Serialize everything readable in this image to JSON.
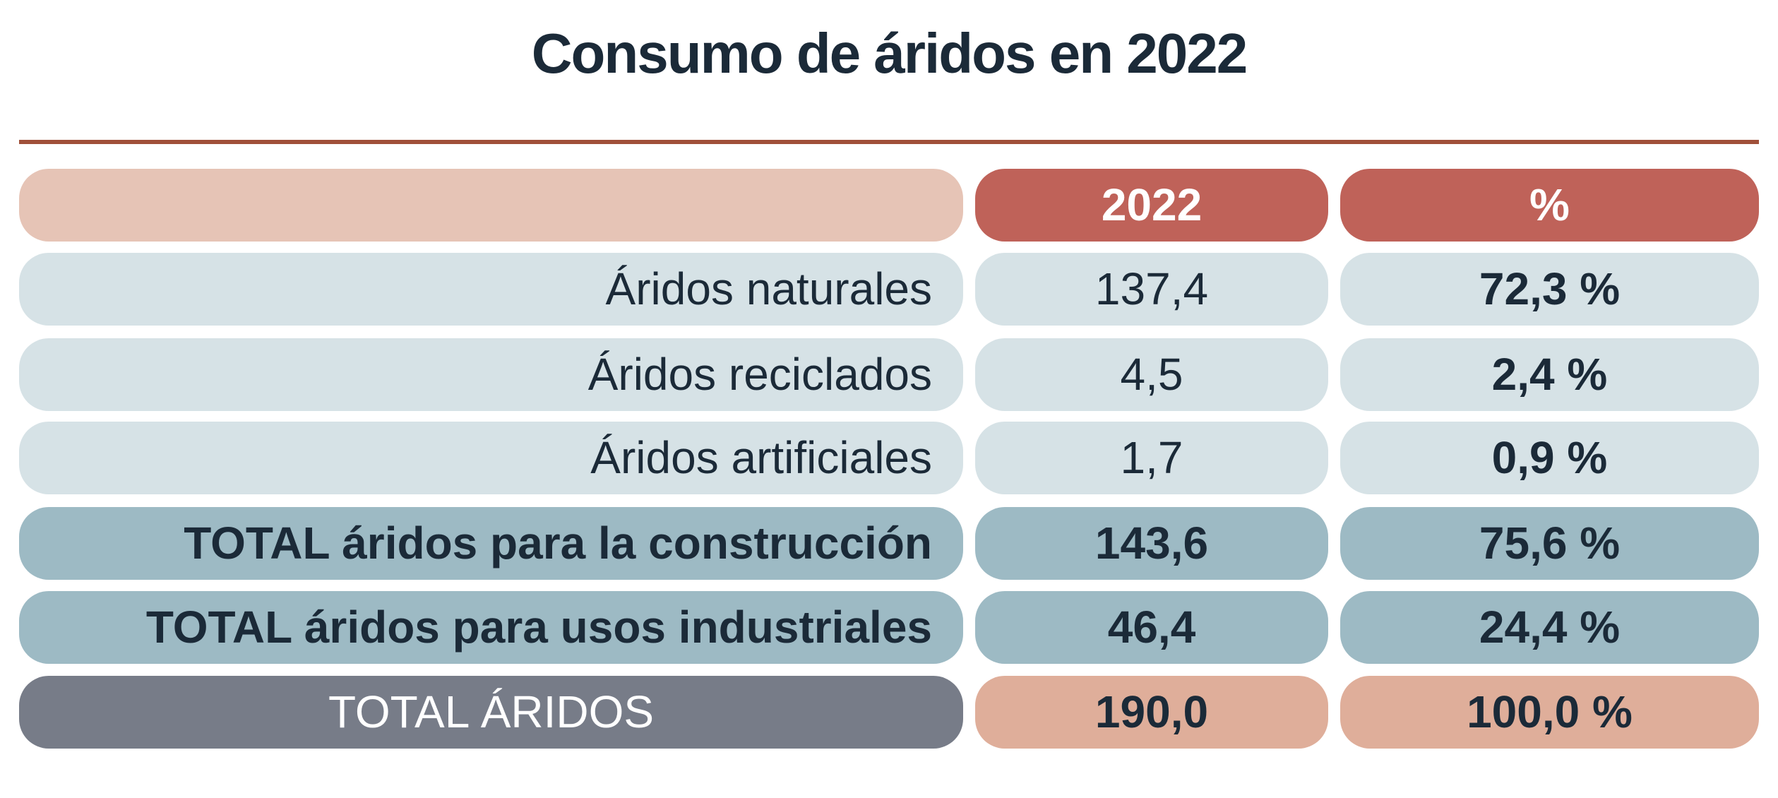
{
  "title": "Consumo de áridos en 2022",
  "table": {
    "header": [
      "2022",
      "%"
    ],
    "rows": [
      [
        "Áridos naturales",
        "137,4",
        "72,3 %"
      ],
      [
        "Áridos reciclados",
        "4,5",
        "2,4 %"
      ],
      [
        "Áridos artificiales",
        "1,7",
        "0,9 %"
      ],
      [
        "TOTAL áridos para la construcción",
        "143,6",
        "75,6 %"
      ],
      [
        "TOTAL áridos para usos industriales",
        "46,4",
        "24,4 %"
      ],
      [
        "TOTAL ÁRIDOS",
        "190,0",
        "100,0 %"
      ]
    ]
  }
}
